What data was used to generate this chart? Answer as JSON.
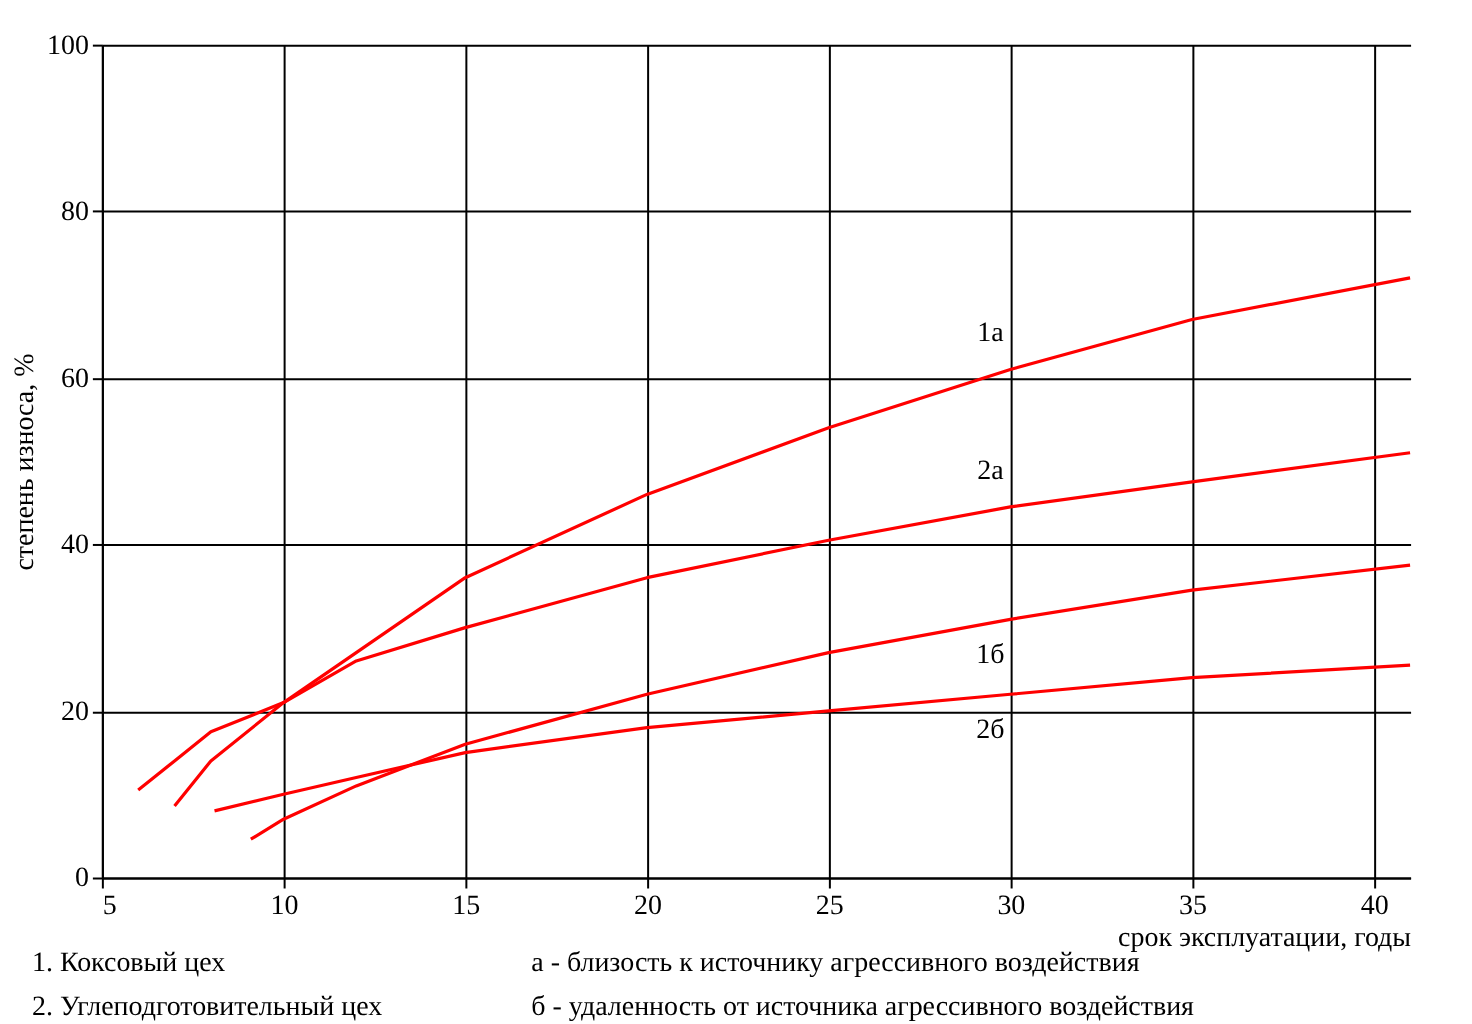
{
  "chart_data": {
    "type": "line",
    "xlabel": "срок эксплуатации, годы",
    "ylabel": "степень износа, %",
    "xlim": [
      5,
      41
    ],
    "xticks": [
      5,
      10,
      15,
      20,
      25,
      30,
      35,
      40
    ],
    "ylim": [
      0,
      100
    ],
    "yticks": [
      0,
      20,
      40,
      60,
      80,
      100
    ],
    "grid": true,
    "marker": "none",
    "line_style": "solid",
    "series": [
      {
        "name": "1а",
        "color": "#ff0000",
        "x": [
          7.0,
          8,
          10,
          12,
          15,
          20,
          25,
          30,
          35,
          41
        ],
        "values": [
          8.6,
          14,
          21,
          27,
          36,
          46,
          54,
          61,
          67,
          72
        ]
      },
      {
        "name": "2а",
        "color": "#ff0000",
        "x": [
          6.0,
          7,
          8,
          10,
          12,
          15,
          20,
          25,
          30,
          35,
          41
        ],
        "values": [
          10.5,
          14,
          17.5,
          21,
          26,
          30,
          36,
          40.5,
          44.5,
          47.5,
          51
        ]
      },
      {
        "name": "1б",
        "color": "#ff0000",
        "x": [
          9.1,
          10,
          12,
          15,
          20,
          25,
          30,
          35,
          41
        ],
        "values": [
          4.6,
          7,
          11,
          16,
          22,
          27,
          31,
          34.5,
          37.5
        ]
      },
      {
        "name": "2б",
        "color": "#ff0000",
        "x": [
          8.1,
          10,
          12,
          15,
          20,
          25,
          30,
          35,
          41
        ],
        "values": [
          8,
          10,
          12,
          15,
          18,
          20,
          22,
          24,
          25.5
        ]
      }
    ],
    "annotations": [
      "1. Коксовый цех",
      "2. Углеподготовительный цех",
      "а - близость к источнику агрессивного воздействия",
      "б - удаленность от источника агрессивного воздействия"
    ]
  }
}
